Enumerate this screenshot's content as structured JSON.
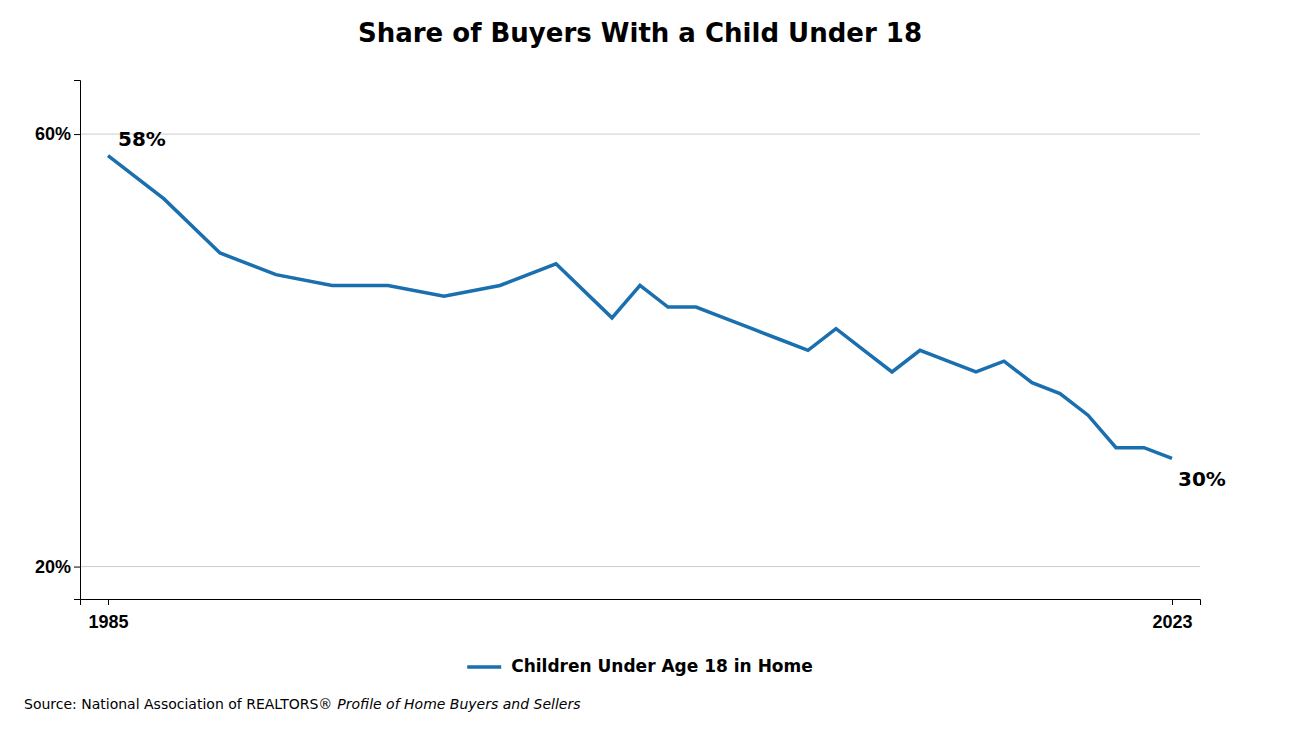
{
  "chart_data": {
    "type": "line",
    "title": "Share of Buyers With a Child Under 18",
    "x": [
      1985,
      1987,
      1989,
      1991,
      1993,
      1995,
      1997,
      1999,
      2001,
      2003,
      2004,
      2005,
      2006,
      2007,
      2008,
      2009,
      2010,
      2011,
      2012,
      2013,
      2014,
      2015,
      2016,
      2017,
      2018,
      2019,
      2020,
      2021,
      2022,
      2023
    ],
    "series": [
      {
        "name": "Children Under Age 18 in Home",
        "color": "#1a6faf",
        "values": [
          58,
          54,
          49,
          47,
          46,
          46,
          45,
          46,
          48,
          43,
          46,
          44,
          44,
          43,
          42,
          41,
          40,
          42,
          40,
          38,
          40,
          39,
          38,
          39,
          37,
          36,
          34,
          31,
          31,
          30
        ]
      }
    ],
    "xlim": [
      1984,
      2024
    ],
    "xticks": [
      1985,
      2023
    ],
    "ylim": [
      17,
      65
    ],
    "yticks": [
      {
        "value": 20,
        "label": "20%"
      },
      {
        "value": 60,
        "label": "60%"
      }
    ],
    "grid": true,
    "legend": "bottom",
    "annotations": [
      {
        "text": "58%",
        "x": 1985,
        "y": 58
      },
      {
        "text": "30%",
        "x": 2023,
        "y": 30
      }
    ],
    "source": [
      "Source: National Association of REALTORS®",
      "Profile of Home Buyers and Sellers"
    ]
  }
}
